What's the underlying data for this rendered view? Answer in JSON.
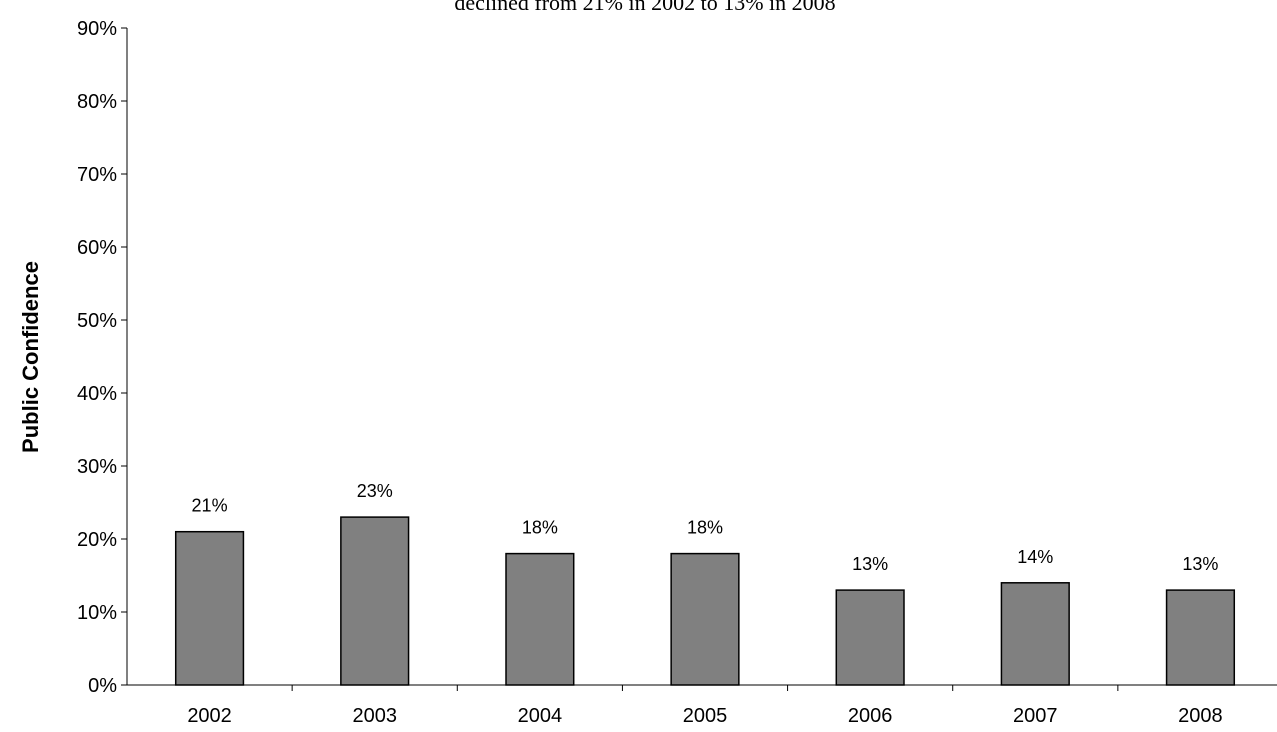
{
  "chart_data": {
    "type": "bar",
    "title": "declined from 21% in 2002 to 13% in 2008",
    "xlabel": "",
    "ylabel": "Public Confidence",
    "categories": [
      "2002",
      "2003",
      "2004",
      "2005",
      "2006",
      "2007",
      "2008"
    ],
    "values": [
      21,
      23,
      18,
      18,
      13,
      14,
      13
    ],
    "data_labels": [
      "21%",
      "23%",
      "18%",
      "18%",
      "13%",
      "14%",
      "13%"
    ],
    "ylim": [
      0,
      90
    ],
    "yticks": [
      0,
      10,
      20,
      30,
      40,
      50,
      60,
      70,
      80,
      90
    ],
    "ytick_labels": [
      "0%",
      "10%",
      "20%",
      "30%",
      "40%",
      "50%",
      "60%",
      "70%",
      "80%",
      "90%"
    ],
    "grid": false,
    "legend": "none",
    "bar_color": "#808080"
  }
}
